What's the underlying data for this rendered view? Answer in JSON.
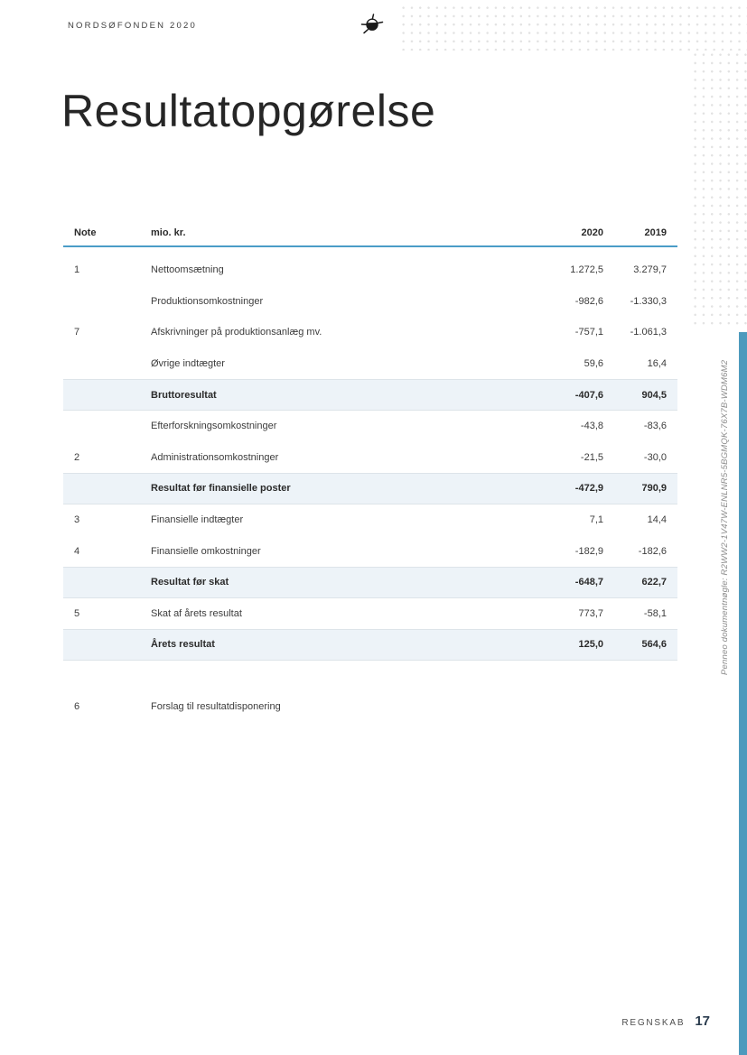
{
  "header": {
    "brand": "NORDSØFONDEN 2020",
    "logo_icon": "nordsoefonden-mine-icon"
  },
  "title": "Resultatopgørelse",
  "table": {
    "headers": {
      "note": "Note",
      "label": "mio. kr.",
      "col2020": "2020",
      "col2019": "2019"
    },
    "rows": [
      {
        "note": "1",
        "label": "Nettoomsætning",
        "v2020": "1.272,5",
        "v2019": "3.279,7",
        "highlight": false
      },
      {
        "note": "",
        "label": "Produktionsomkostninger",
        "v2020": "-982,6",
        "v2019": "-1.330,3",
        "highlight": false
      },
      {
        "note": "7",
        "label": "Afskrivninger på produktionsanlæg mv.",
        "v2020": "-757,1",
        "v2019": "-1.061,3",
        "highlight": false
      },
      {
        "note": "",
        "label": "Øvrige indtægter",
        "v2020": "59,6",
        "v2019": "16,4",
        "highlight": false
      },
      {
        "note": "",
        "label": "Bruttoresultat",
        "v2020": "-407,6",
        "v2019": "904,5",
        "highlight": true
      },
      {
        "note": "",
        "label": "Efterforskningsomkostninger",
        "v2020": "-43,8",
        "v2019": "-83,6",
        "highlight": false
      },
      {
        "note": "2",
        "label": "Administrationsomkostninger",
        "v2020": "-21,5",
        "v2019": "-30,0",
        "highlight": false
      },
      {
        "note": "",
        "label": "Resultat før finansielle poster",
        "v2020": "-472,9",
        "v2019": "790,9",
        "highlight": true
      },
      {
        "note": "3",
        "label": "Finansielle indtægter",
        "v2020": "7,1",
        "v2019": "14,4",
        "highlight": false
      },
      {
        "note": "4",
        "label": "Finansielle omkostninger",
        "v2020": "-182,9",
        "v2019": "-182,6",
        "highlight": false
      },
      {
        "note": "",
        "label": "Resultat før skat",
        "v2020": "-648,7",
        "v2019": "622,7",
        "highlight": true
      },
      {
        "note": "5",
        "label": "Skat af årets resultat",
        "v2020": "773,7",
        "v2019": "-58,1",
        "highlight": false
      },
      {
        "note": "",
        "label": "Årets resultat",
        "v2020": "125,0",
        "v2019": "564,6",
        "highlight": true
      }
    ],
    "extra_row": {
      "note": "6",
      "label": "Forslag til resultatdisponering"
    }
  },
  "penneo": {
    "text": "Penneo dokumentnøgle: R2WW2-1V47W-ENLNR5-5BGMQK-76X7B-WDM6M2"
  },
  "footer": {
    "section": "REGNSKAB",
    "page_number": "17"
  },
  "colors": {
    "accent_blue": "#4a9cc7",
    "bar_blue": "#4d9abd",
    "highlight_bg": "#edf3f8"
  }
}
